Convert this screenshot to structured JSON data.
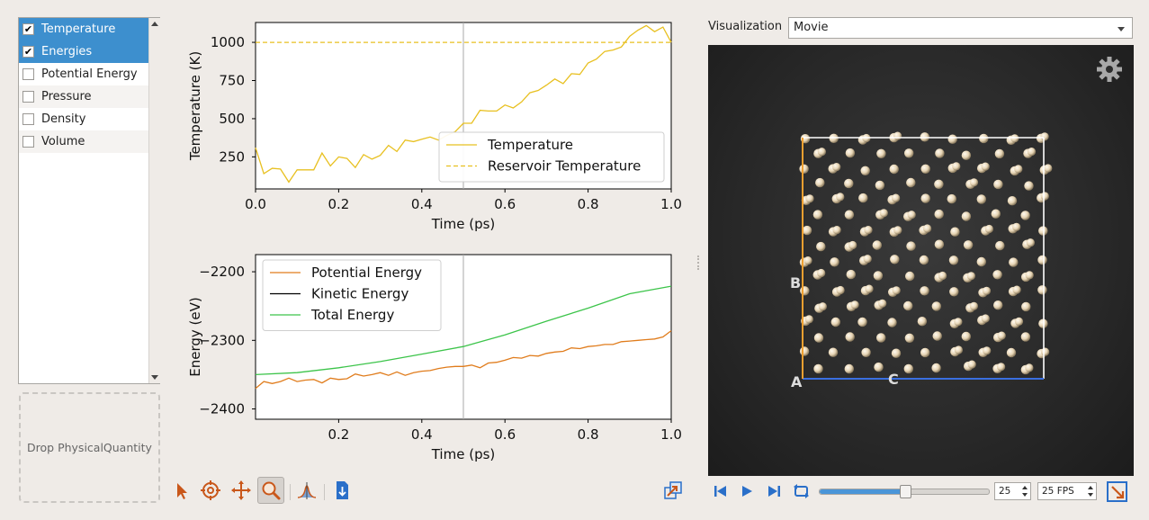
{
  "quantities": [
    {
      "label": "Temperature",
      "checked": true,
      "selected": true
    },
    {
      "label": "Energies",
      "checked": true,
      "selected": true
    },
    {
      "label": "Potential Energy",
      "checked": false,
      "selected": false
    },
    {
      "label": "Pressure",
      "checked": false,
      "selected": false
    },
    {
      "label": "Density",
      "checked": false,
      "selected": false
    },
    {
      "label": "Volume",
      "checked": false,
      "selected": false
    }
  ],
  "drop_zone": "Drop PhysicalQuantity",
  "visualization": {
    "label": "Visualization",
    "selected": "Movie"
  },
  "axes_labels": {
    "a": "A",
    "b": "B",
    "c": "C"
  },
  "player": {
    "frame": "25",
    "fps": "25 FPS",
    "progress": 0.5
  },
  "colors": {
    "temperature": "#e8c020",
    "potential": "#e07c1c",
    "kinetic": "#000000",
    "total": "#3cc44a",
    "selection": "#3d8fce",
    "accent": "#2a7bd1"
  },
  "toolbar_icons": [
    "select-arrow-icon",
    "crosshair-icon",
    "pan-icon",
    "zoom-icon",
    "peak-icon",
    "export-icon",
    "detach-icon"
  ],
  "chart_data": [
    {
      "type": "line",
      "xlabel": "Time (ps)",
      "ylabel": "Temperature (K)",
      "xlim": [
        0,
        1.0
      ],
      "ylim": [
        40,
        1130
      ],
      "xticks": [
        "0.0",
        "0.2",
        "0.4",
        "0.6",
        "0.8",
        "1.0"
      ],
      "yticks": [
        "250",
        "500",
        "750",
        "1000"
      ],
      "legend": "bottom-right",
      "cursor_x": 0.5,
      "series": [
        {
          "name": "Temperature",
          "style": "solid",
          "x": [
            0,
            0.02,
            0.04,
            0.06,
            0.08,
            0.1,
            0.12,
            0.14,
            0.16,
            0.18,
            0.2,
            0.22,
            0.24,
            0.26,
            0.28,
            0.3,
            0.32,
            0.34,
            0.36,
            0.38,
            0.4,
            0.42,
            0.44,
            0.46,
            0.48,
            0.5,
            0.52,
            0.54,
            0.56,
            0.58,
            0.6,
            0.62,
            0.64,
            0.66,
            0.68,
            0.7,
            0.72,
            0.74,
            0.76,
            0.78,
            0.8,
            0.82,
            0.84,
            0.86,
            0.88,
            0.9,
            0.92,
            0.94,
            0.96,
            0.98,
            1.0
          ],
          "y": [
            310,
            140,
            175,
            170,
            85,
            165,
            165,
            165,
            275,
            190,
            250,
            240,
            180,
            265,
            235,
            260,
            325,
            285,
            360,
            350,
            365,
            380,
            360,
            390,
            415,
            470,
            470,
            555,
            550,
            550,
            590,
            570,
            610,
            670,
            685,
            720,
            760,
            730,
            795,
            790,
            865,
            890,
            940,
            950,
            970,
            1040,
            1080,
            1110,
            1070,
            1100,
            1000
          ]
        },
        {
          "name": "Reservoir Temperature",
          "style": "dashed",
          "x": [
            0,
            1.0
          ],
          "y": [
            1000,
            1000
          ]
        }
      ]
    },
    {
      "type": "line",
      "xlabel": "Time (ps)",
      "ylabel": "Energy (eV)",
      "xlim": [
        0,
        1.0
      ],
      "ylim": [
        -2415,
        -2175
      ],
      "xticks": [
        "0.2",
        "0.4",
        "0.6",
        "0.8",
        "1.0"
      ],
      "yticks": [
        "-2200",
        "-2300",
        "-2400"
      ],
      "legend": "top-left",
      "cursor_x": 0.5,
      "series": [
        {
          "name": "Potential Energy",
          "style": "solid",
          "x": [
            0,
            0.02,
            0.04,
            0.06,
            0.08,
            0.1,
            0.12,
            0.14,
            0.16,
            0.18,
            0.2,
            0.22,
            0.24,
            0.26,
            0.28,
            0.3,
            0.32,
            0.34,
            0.36,
            0.38,
            0.4,
            0.42,
            0.44,
            0.46,
            0.48,
            0.5,
            0.52,
            0.54,
            0.56,
            0.58,
            0.6,
            0.62,
            0.64,
            0.66,
            0.68,
            0.7,
            0.72,
            0.74,
            0.76,
            0.78,
            0.8,
            0.82,
            0.84,
            0.86,
            0.88,
            0.9,
            0.92,
            0.94,
            0.96,
            0.98,
            1.0
          ],
          "y": [
            -2370,
            -2360,
            -2363,
            -2360,
            -2355,
            -2360,
            -2358,
            -2357,
            -2362,
            -2355,
            -2357,
            -2356,
            -2349,
            -2352,
            -2350,
            -2347,
            -2351,
            -2346,
            -2351,
            -2347,
            -2345,
            -2344,
            -2341,
            -2339,
            -2338,
            -2338,
            -2336,
            -2340,
            -2333,
            -2332,
            -2329,
            -2325,
            -2326,
            -2322,
            -2323,
            -2319,
            -2317,
            -2316,
            -2311,
            -2312,
            -2309,
            -2308,
            -2306,
            -2306,
            -2302,
            -2301,
            -2300,
            -2299,
            -2298,
            -2295,
            -2286
          ]
        },
        {
          "name": "Kinetic Energy",
          "style": "solid",
          "x": [],
          "y": []
        },
        {
          "name": "Total Energy",
          "style": "solid",
          "x": [
            0,
            0.1,
            0.2,
            0.3,
            0.4,
            0.5,
            0.6,
            0.7,
            0.8,
            0.9,
            1.0
          ],
          "y": [
            -2350,
            -2347,
            -2340,
            -2331,
            -2320,
            -2309,
            -2292,
            -2272,
            -2253,
            -2232,
            -2221
          ]
        }
      ]
    }
  ]
}
